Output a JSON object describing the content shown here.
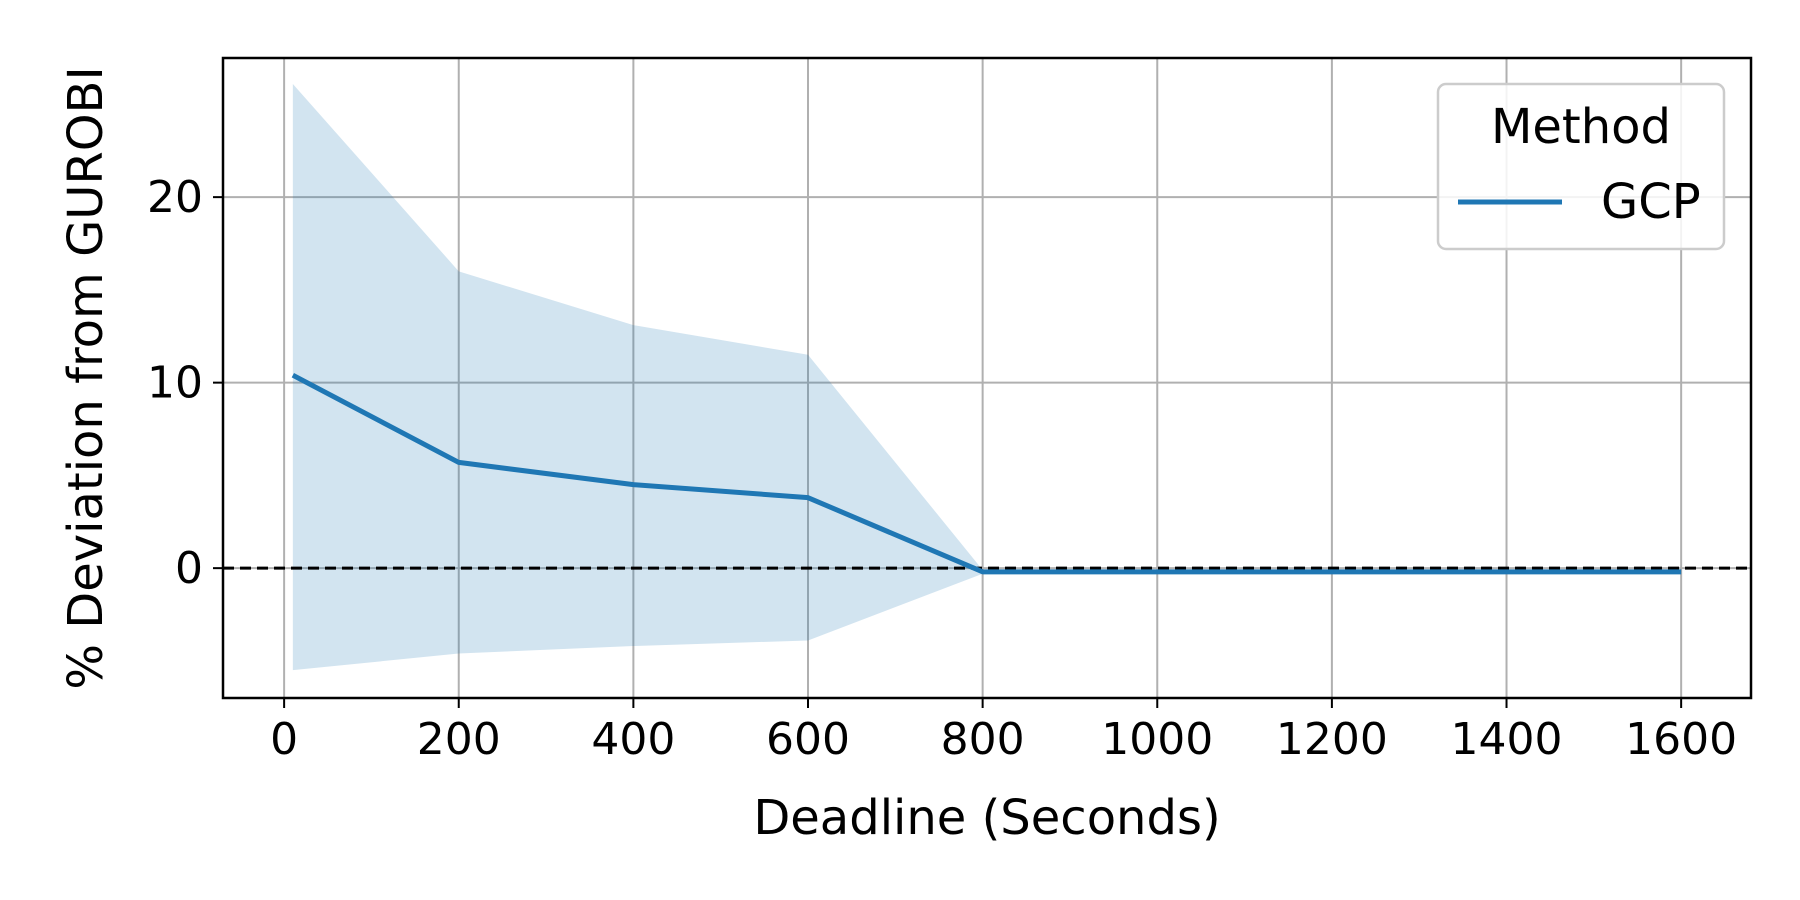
{
  "chart_data": {
    "type": "line",
    "title": "",
    "xlabel": "Deadline (Seconds)",
    "ylabel": "% Deviation from GUROBI",
    "xlim": [
      -70,
      1680
    ],
    "ylim": [
      -7,
      27.5
    ],
    "xticks": [
      0,
      200,
      400,
      600,
      800,
      1000,
      1200,
      1400,
      1600
    ],
    "yticks": [
      0,
      10,
      20
    ],
    "grid": true,
    "legend": {
      "title": "Method",
      "placement": "top-right"
    },
    "reference_line": {
      "y": 0,
      "style": "dashed",
      "color": "#000000"
    },
    "series": [
      {
        "name": "GCP",
        "color": "#1f77b4",
        "band_color": "#1f77b4",
        "x": [
          10,
          200,
          400,
          600,
          800,
          1000,
          1200,
          1400,
          1600
        ],
        "y": [
          10.4,
          5.7,
          4.5,
          3.8,
          -0.2,
          -0.2,
          -0.2,
          -0.2,
          -0.2
        ],
        "lower": [
          -5.5,
          -4.6,
          -4.2,
          -3.9,
          -0.3,
          -0.3,
          -0.3,
          -0.3,
          -0.3
        ],
        "upper": [
          26.1,
          16.0,
          13.1,
          11.5,
          -0.1,
          -0.1,
          -0.1,
          -0.1,
          -0.1
        ]
      }
    ]
  }
}
